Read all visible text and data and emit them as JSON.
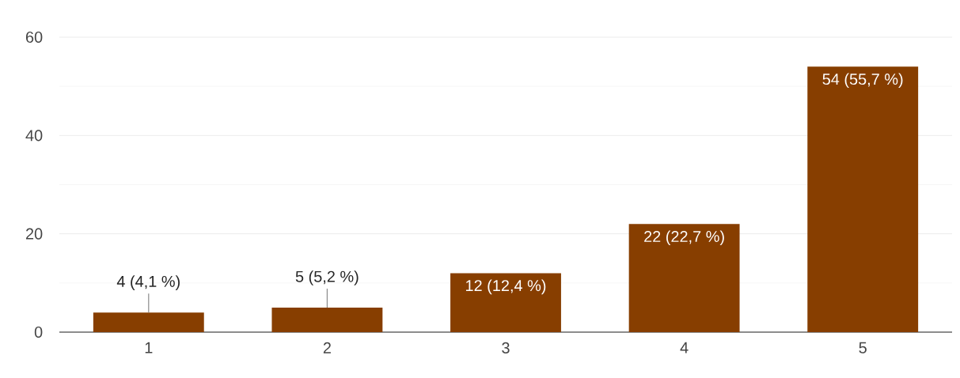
{
  "chart_data": {
    "type": "bar",
    "categories": [
      "1",
      "2",
      "3",
      "4",
      "5"
    ],
    "values": [
      4,
      5,
      12,
      22,
      54
    ],
    "value_labels": [
      "4 (4,1 %)",
      "5 (5,2 %)",
      "12 (12,4 %)",
      "22 (22,7 %)",
      "54 (55,7 %)"
    ],
    "color": "#873e00",
    "ylim": [
      0,
      60
    ],
    "yticks": [
      0,
      20,
      40,
      60
    ],
    "grid": "y"
  }
}
